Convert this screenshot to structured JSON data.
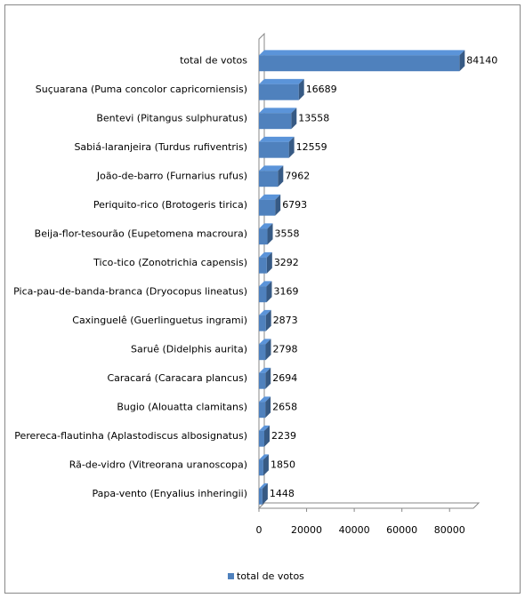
{
  "chart_data": {
    "type": "bar",
    "orientation": "horizontal",
    "three_d": true,
    "categories": [
      "total de votos",
      "Suçuarana (Puma concolor capricorniensis)",
      "Bentevi (Pitangus sulphuratus)",
      "Sabiá-laranjeira (Turdus rufiventris)",
      "João-de-barro (Furnarius rufus)",
      "Periquito-rico (Brotogeris tirica)",
      "Beija-flor-tesourão (Eupetomena macroura)",
      "Tico-tico (Zonotrichia capensis)",
      "Pica-pau-de-banda-branca (Dryocopus lineatus)",
      "Caxinguelê (Guerlinguetus ingrami)",
      "Saruê (Didelphis aurita)",
      "Caracará (Caracara plancus)",
      "Bugio (Alouatta clamitans)",
      "Perereca-flautinha (Aplastodiscus albosignatus)",
      "Rã-de-vidro (Vitreorana uranoscopa)",
      "Papa-vento (Enyalius inheringii)"
    ],
    "series": [
      {
        "name": "total de votos",
        "color": "#4f81bd",
        "values": [
          84140,
          16689,
          13558,
          12559,
          7962,
          6793,
          3558,
          3292,
          3169,
          2873,
          2798,
          2694,
          2658,
          2239,
          1850,
          1448
        ]
      }
    ],
    "xlim": [
      0,
      90000
    ],
    "xticks": [
      0,
      20000,
      40000,
      60000,
      80000
    ],
    "legend": "bottom",
    "grid": false
  }
}
